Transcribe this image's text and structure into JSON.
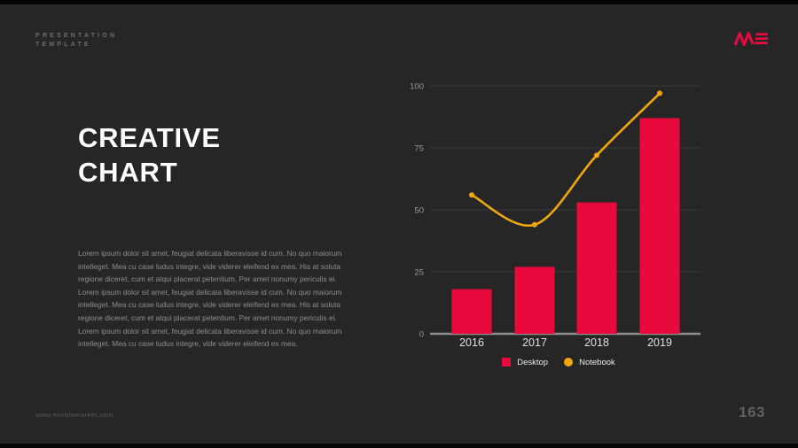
{
  "slide": {
    "eyebrow": "PRESENTATION\nTEMPLATE",
    "title_line1": "CREATIVE",
    "title_line2": "CHART",
    "body": "Lorem ipsum dolor sit amet, feugiat delicata liberavisse id cum. No quo maiorum intelleget. Mea cu case ludus integre, vide viderer eleifend ex mea. His at soluta regione diceret, cum et atqui placerat petentium. Per amet nonumy periculis ei. Lorem ipsum dolor sit amet, feugiat delicata liberavisse id cum. No quo maiorum intelleget. Mea cu case ludus integre, vide viderer eleifend ex mea. His at soluta regione diceret, cum et atqui placerat petentium. Per amet nonumy periculis ei. Lorem ipsum dolor sit amet, feugiat delicata liberavisse id cum. No quo maiorum intelleget. Mea cu case ludus integre, vide viderer eleifend ex mea.",
    "footer_url": "www.envatomarket.com",
    "page_number": "163",
    "logo_name": "ME-logo"
  },
  "colors": {
    "background": "#262626",
    "accent_red": "#e80a3c",
    "accent_yellow": "#f0a80e",
    "grid": "#3b3b3b",
    "axis": "#8f8f8f",
    "tick_label": "#9a9a9a",
    "x_label": "#e0e0e0",
    "title": "#ffffff"
  },
  "chart_data": {
    "type": "bar",
    "subtype": "bar-and-line-combo",
    "title": "",
    "xlabel": "",
    "ylabel": "",
    "categories": [
      "2016",
      "2017",
      "2018",
      "2019"
    ],
    "series": [
      {
        "name": "Desktop",
        "type": "bar",
        "color": "#e80a3c",
        "values": [
          18,
          27,
          53,
          87
        ]
      },
      {
        "name": "Notebook",
        "type": "line",
        "color": "#f0a80e",
        "values": [
          56,
          44,
          72,
          97
        ]
      }
    ],
    "ylim": [
      0,
      100
    ],
    "yticks": [
      0,
      25,
      50,
      75,
      100
    ],
    "grid": true,
    "legend_position": "bottom"
  }
}
